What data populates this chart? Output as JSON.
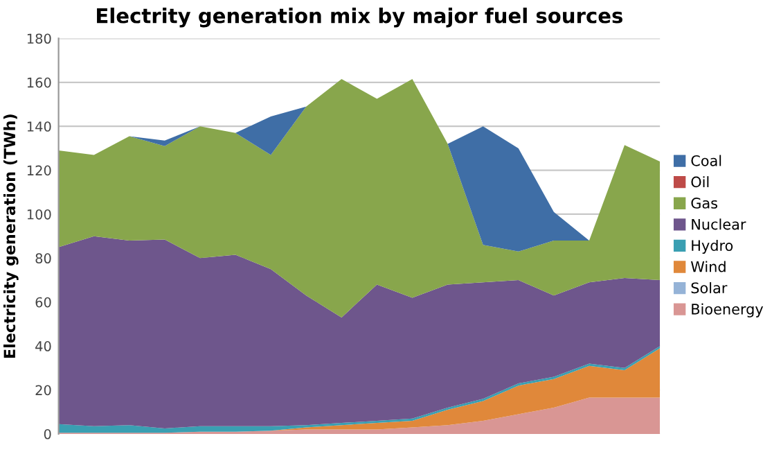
{
  "chart_data": {
    "type": "area",
    "stacked": true,
    "title": "Electrity generation mix by major fuel sources",
    "ylabel": "Electricity generation (TWh)",
    "categories": [
      null,
      null,
      null,
      null,
      null,
      null,
      null,
      null,
      null,
      null,
      null,
      null,
      null,
      null,
      null,
      null,
      null,
      null
    ],
    "ylim": [
      0,
      180
    ],
    "yticks": [
      0,
      20,
      40,
      60,
      80,
      100,
      120,
      140,
      160,
      180
    ],
    "grid": "y",
    "legend": "right",
    "series": [
      {
        "name": "Bioenergy",
        "color": "#d99694",
        "values": [
          0.5,
          0.5,
          0.5,
          0.5,
          1,
          1,
          1.5,
          2,
          2,
          2,
          3,
          4,
          6,
          9,
          12,
          16.5,
          16.5,
          16.5
        ]
      },
      {
        "name": "Solar",
        "color": "#95b3d7",
        "values": [
          null,
          null,
          null,
          null,
          null,
          null,
          null,
          null,
          null,
          null,
          null,
          null,
          null,
          null,
          null,
          null,
          null,
          null
        ]
      },
      {
        "name": "Wind",
        "color": "#e0883a",
        "values": [
          0,
          0,
          0,
          0,
          0,
          0,
          0,
          1,
          2,
          3,
          3,
          7,
          9,
          13,
          13,
          14.5,
          12.5,
          22.5
        ]
      },
      {
        "name": "Hydro",
        "color": "#3a9fb2",
        "values": [
          4,
          3,
          3.5,
          2,
          2.5,
          2.5,
          2,
          1,
          1,
          1,
          1,
          1,
          1,
          1,
          1,
          1,
          1,
          1
        ]
      },
      {
        "name": "Nuclear",
        "color": "#6e568c",
        "values": [
          80.5,
          86.5,
          84,
          86,
          76.5,
          78,
          71.5,
          59,
          48,
          62,
          55,
          56,
          53,
          47,
          37,
          37,
          41,
          30
        ]
      },
      {
        "name": "Gas",
        "color": "#88a64c",
        "values": [
          44,
          37,
          47.5,
          42.5,
          60,
          55.5,
          52,
          86,
          108.5,
          84.5,
          99.5,
          64,
          17,
          13,
          25,
          19,
          60.5,
          54
        ]
      },
      {
        "name": "Oil",
        "color": "#be4b48",
        "values": [
          null,
          null,
          null,
          null,
          null,
          null,
          null,
          null,
          null,
          null,
          null,
          null,
          null,
          null,
          null,
          null,
          null,
          null
        ]
      },
      {
        "name": "Coal",
        "color": "#3f6ea6",
        "values": [
          0,
          0,
          0,
          2.5,
          0,
          0,
          17.5,
          0,
          0,
          0,
          0,
          0,
          54,
          47,
          13,
          0,
          0,
          0
        ]
      }
    ]
  }
}
